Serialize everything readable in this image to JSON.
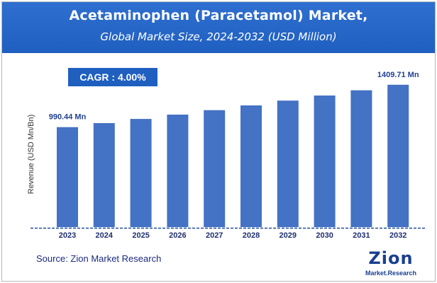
{
  "header": {
    "title": "Acetaminophen (Paracetamol) Market,",
    "subtitle": "Global Market Size, 2024-2032 (USD Million)"
  },
  "cagr_label": "CAGR : 4.00%",
  "source": "Source: Zion Market Research",
  "logo": {
    "word": "Zion",
    "sub": "Market.Research",
    "accent": "#f5a623"
  },
  "colors": {
    "header": "#1f5fbf",
    "bar": "#4472c4",
    "label": "#1f3f8f",
    "axis": "#1f4e9a"
  },
  "chart_data": {
    "type": "bar",
    "categories": [
      "2023",
      "2024",
      "2025",
      "2026",
      "2027",
      "2028",
      "2029",
      "2030",
      "2031",
      "2032"
    ],
    "values": [
      990.44,
      1030.06,
      1071.26,
      1114.11,
      1158.67,
      1205.02,
      1253.22,
      1303.35,
      1355.48,
      1409.71
    ],
    "data_labels": [
      {
        "index": 0,
        "text": "990.44 Mn"
      },
      {
        "index": 9,
        "text": "1409.71 Mn"
      }
    ],
    "title": "Acetaminophen (Paracetamol) Market,",
    "subtitle": "Global Market Size, 2024-2032 (USD Million)",
    "xlabel": "",
    "ylabel": "Revenue (USD Mn/Bn)",
    "ylim": [
      0,
      1500
    ],
    "grid": false,
    "legend": "none"
  }
}
